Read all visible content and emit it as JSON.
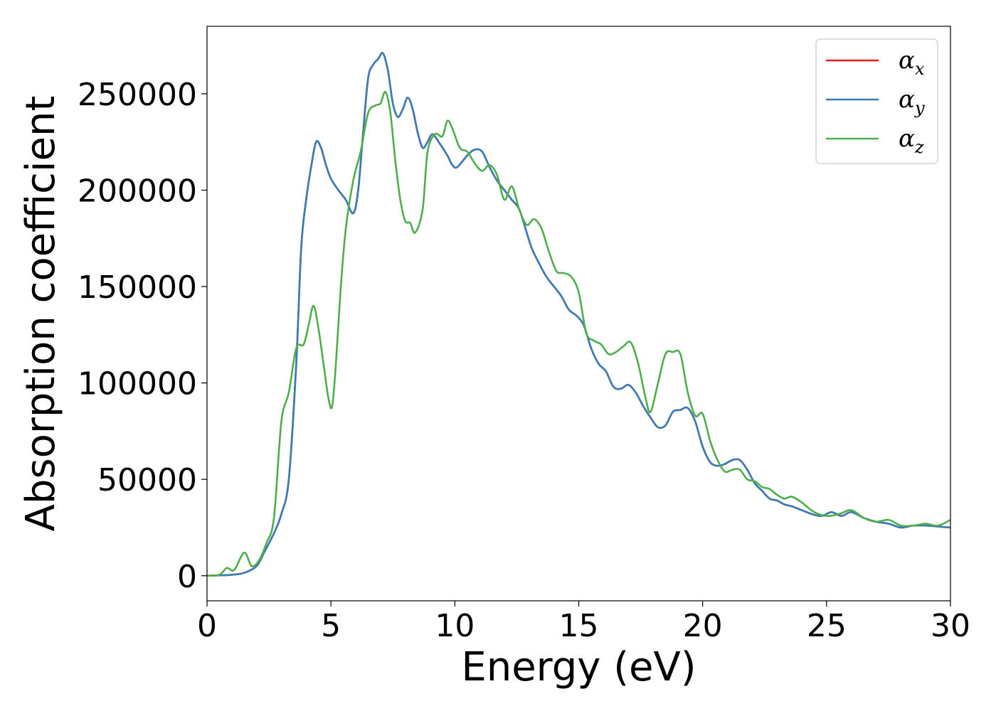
{
  "chart_data": {
    "type": "line",
    "title": "",
    "xlabel": "Energy (eV)",
    "ylabel": "Absorption coefficient",
    "xlim": [
      0,
      30
    ],
    "ylim": [
      -13000,
      285000
    ],
    "xticks": [
      0,
      5,
      10,
      15,
      20,
      25,
      30
    ],
    "yticks": [
      0,
      50000,
      100000,
      150000,
      200000,
      250000
    ],
    "grid": false,
    "legend_position": "top-right",
    "series": [
      {
        "name": "αx",
        "legend_base": "α",
        "legend_sub": "x",
        "color": "#e41a1c",
        "x": [
          0,
          0.5,
          1.0,
          1.5,
          2.0,
          2.3,
          2.7,
          3.0,
          3.3,
          3.6,
          3.8,
          4.0,
          4.2,
          4.4,
          4.6,
          4.8,
          5.0,
          5.3,
          5.6,
          5.9,
          6.1,
          6.3,
          6.5,
          6.7,
          6.9,
          7.1,
          7.3,
          7.5,
          7.7,
          7.9,
          8.1,
          8.3,
          8.5,
          8.7,
          8.9,
          9.1,
          9.4,
          9.7,
          9.9,
          10.1,
          10.5,
          10.8,
          11.1,
          11.4,
          11.7,
          12.0,
          12.3,
          12.6,
          12.9,
          13.1,
          13.4,
          13.7,
          14.0,
          14.3,
          14.6,
          14.9,
          15.2,
          15.5,
          15.8,
          16.1,
          16.4,
          16.7,
          17.0,
          17.3,
          17.6,
          17.9,
          18.2,
          18.5,
          18.8,
          19.1,
          19.4,
          19.7,
          20.0,
          20.3,
          20.6,
          20.9,
          21.2,
          21.5,
          21.8,
          22.1,
          22.4,
          22.7,
          23.0,
          23.3,
          23.6,
          24.0,
          24.4,
          24.8,
          25.2,
          25.6,
          26.0,
          26.5,
          27.0,
          27.5,
          28.0,
          28.5,
          29.0,
          29.5,
          30.0
        ],
        "values": [
          0,
          200,
          500,
          1500,
          5000,
          12000,
          22000,
          32000,
          50000,
          110000,
          170000,
          195000,
          212000,
          225000,
          222000,
          213000,
          206000,
          200000,
          195000,
          188000,
          200000,
          230000,
          258000,
          265000,
          268000,
          271000,
          262000,
          245000,
          238000,
          242000,
          248000,
          242000,
          230000,
          222000,
          225000,
          229000,
          224000,
          218000,
          213000,
          212000,
          218000,
          221000,
          220000,
          212000,
          205000,
          200000,
          195000,
          190000,
          178000,
          170000,
          162000,
          155000,
          150000,
          145000,
          138000,
          135000,
          130000,
          118000,
          110000,
          106000,
          98000,
          97000,
          99000,
          95000,
          88000,
          82000,
          77000,
          78000,
          85000,
          86000,
          87000,
          80000,
          67000,
          59000,
          57000,
          58000,
          60000,
          60000,
          55000,
          48000,
          44000,
          40000,
          39000,
          37000,
          36000,
          34000,
          32000,
          31000,
          33000,
          31000,
          33000,
          30000,
          28000,
          27000,
          25000,
          26000,
          26000,
          25500,
          25000
        ]
      },
      {
        "name": "αy",
        "legend_base": "α",
        "legend_sub": "y",
        "color": "#377eb8",
        "x": [
          0,
          0.5,
          1.0,
          1.5,
          2.0,
          2.3,
          2.7,
          3.0,
          3.3,
          3.6,
          3.8,
          4.0,
          4.2,
          4.4,
          4.6,
          4.8,
          5.0,
          5.3,
          5.6,
          5.9,
          6.1,
          6.3,
          6.5,
          6.7,
          6.9,
          7.1,
          7.3,
          7.5,
          7.7,
          7.9,
          8.1,
          8.3,
          8.5,
          8.7,
          8.9,
          9.1,
          9.4,
          9.7,
          9.9,
          10.1,
          10.5,
          10.8,
          11.1,
          11.4,
          11.7,
          12.0,
          12.3,
          12.6,
          12.9,
          13.1,
          13.4,
          13.7,
          14.0,
          14.3,
          14.6,
          14.9,
          15.2,
          15.5,
          15.8,
          16.1,
          16.4,
          16.7,
          17.0,
          17.3,
          17.6,
          17.9,
          18.2,
          18.5,
          18.8,
          19.1,
          19.4,
          19.7,
          20.0,
          20.3,
          20.6,
          20.9,
          21.2,
          21.5,
          21.8,
          22.1,
          22.4,
          22.7,
          23.0,
          23.3,
          23.6,
          24.0,
          24.4,
          24.8,
          25.2,
          25.6,
          26.0,
          26.5,
          27.0,
          27.5,
          28.0,
          28.5,
          29.0,
          29.5,
          30.0
        ],
        "values": [
          0,
          200,
          500,
          1500,
          5000,
          12000,
          22000,
          32000,
          50000,
          110000,
          170000,
          195000,
          212000,
          225000,
          222000,
          213000,
          206000,
          200000,
          195000,
          188000,
          200000,
          230000,
          258000,
          265000,
          268000,
          271000,
          262000,
          245000,
          238000,
          242000,
          248000,
          242000,
          230000,
          222000,
          225000,
          229000,
          224000,
          218000,
          213000,
          212000,
          218000,
          221000,
          220000,
          212000,
          205000,
          200000,
          195000,
          190000,
          178000,
          170000,
          162000,
          155000,
          150000,
          145000,
          138000,
          135000,
          130000,
          118000,
          110000,
          106000,
          98000,
          97000,
          99000,
          95000,
          88000,
          82000,
          77000,
          78000,
          85000,
          86000,
          87000,
          80000,
          67000,
          59000,
          57000,
          58000,
          60000,
          60000,
          55000,
          48000,
          44000,
          40000,
          39000,
          37000,
          36000,
          34000,
          32000,
          31000,
          33000,
          31000,
          33000,
          30000,
          28000,
          27000,
          25000,
          26000,
          26000,
          25500,
          25000
        ]
      },
      {
        "name": "αz",
        "legend_base": "α",
        "legend_sub": "z",
        "color": "#4daf4a",
        "x": [
          0,
          0.5,
          0.8,
          1.1,
          1.5,
          1.8,
          2.1,
          2.4,
          2.7,
          3.0,
          3.3,
          3.6,
          3.9,
          4.1,
          4.3,
          4.5,
          4.7,
          4.9,
          5.05,
          5.2,
          5.4,
          5.6,
          5.9,
          6.2,
          6.5,
          6.8,
          7.0,
          7.2,
          7.4,
          7.6,
          7.8,
          8.0,
          8.2,
          8.4,
          8.7,
          8.9,
          9.2,
          9.5,
          9.7,
          9.9,
          10.2,
          10.5,
          10.8,
          11.1,
          11.4,
          11.7,
          12.0,
          12.3,
          12.6,
          12.9,
          13.2,
          13.5,
          13.8,
          14.1,
          14.4,
          14.7,
          15.0,
          15.3,
          15.6,
          15.9,
          16.2,
          16.5,
          16.8,
          17.1,
          17.4,
          17.7,
          17.9,
          18.2,
          18.5,
          18.8,
          19.1,
          19.4,
          19.7,
          20.0,
          20.3,
          20.6,
          20.9,
          21.2,
          21.5,
          21.8,
          22.1,
          22.4,
          22.7,
          23.0,
          23.3,
          23.6,
          24.0,
          24.5,
          25.0,
          25.5,
          26.0,
          26.5,
          27.0,
          27.5,
          28.0,
          28.5,
          29.0,
          29.5,
          30.0
        ],
        "values": [
          0,
          500,
          4000,
          3000,
          12000,
          5000,
          8000,
          17000,
          30000,
          80000,
          95000,
          118000,
          120000,
          130000,
          140000,
          128000,
          110000,
          92000,
          88000,
          110000,
          150000,
          180000,
          205000,
          220000,
          240000,
          244000,
          245000,
          251000,
          240000,
          215000,
          195000,
          184000,
          183000,
          178000,
          190000,
          220000,
          229000,
          228000,
          236000,
          232000,
          222000,
          220000,
          214000,
          210000,
          213000,
          208000,
          195000,
          202000,
          190000,
          182000,
          185000,
          180000,
          168000,
          158000,
          157000,
          155000,
          147000,
          126000,
          122000,
          120000,
          115000,
          116000,
          119000,
          121000,
          110000,
          92000,
          85000,
          100000,
          115000,
          116000,
          115000,
          95000,
          83000,
          84000,
          70000,
          60000,
          54000,
          55000,
          55000,
          50000,
          49000,
          46000,
          45000,
          42000,
          40000,
          41000,
          38000,
          33000,
          31000,
          32000,
          34000,
          30000,
          28000,
          29000,
          26000,
          26000,
          27000,
          26000,
          29000
        ]
      }
    ]
  }
}
